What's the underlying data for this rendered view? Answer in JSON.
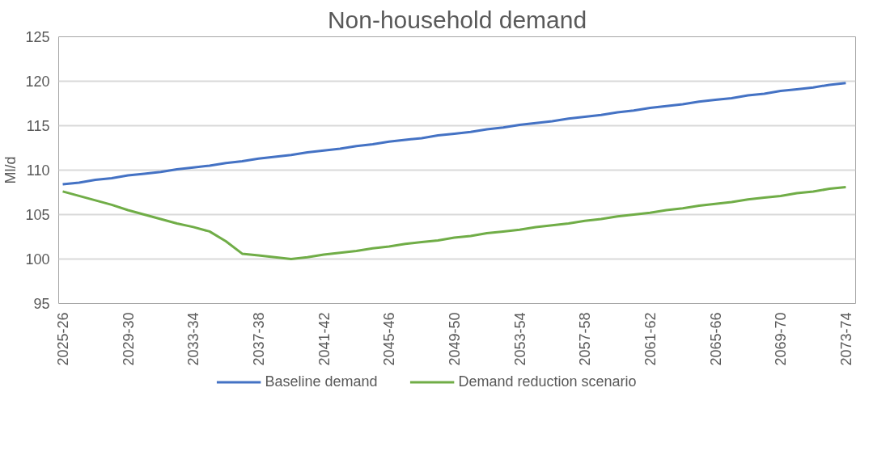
{
  "chart_data": {
    "type": "line",
    "title": "Non-household demand",
    "ylabel": "Ml/d",
    "categories": [
      "2025-26",
      null,
      null,
      null,
      "2029-30",
      null,
      null,
      null,
      "2033-34",
      null,
      null,
      null,
      "2037-38",
      null,
      null,
      null,
      "2041-42",
      null,
      null,
      null,
      "2045-46",
      null,
      null,
      null,
      "2049-50",
      null,
      null,
      null,
      "2053-54",
      null,
      null,
      null,
      "2057-58",
      null,
      null,
      null,
      "2061-62",
      null,
      null,
      null,
      "2065-66",
      null,
      null,
      null,
      "2069-70",
      null,
      null,
      null,
      "2073-74"
    ],
    "series": [
      {
        "name": "Baseline demand",
        "color": "#4472c4",
        "values": [
          108.4,
          108.6,
          108.9,
          109.1,
          109.4,
          109.6,
          109.8,
          110.1,
          110.3,
          110.5,
          110.8,
          111.0,
          111.3,
          111.5,
          111.7,
          112.0,
          112.2,
          112.4,
          112.7,
          112.9,
          113.2,
          113.4,
          113.6,
          113.9,
          114.1,
          114.3,
          114.6,
          114.8,
          115.1,
          115.3,
          115.5,
          115.8,
          116.0,
          116.2,
          116.5,
          116.7,
          117.0,
          117.2,
          117.4,
          117.7,
          117.9,
          118.1,
          118.4,
          118.6,
          118.9,
          119.1,
          119.3,
          119.6,
          119.8
        ]
      },
      {
        "name": "Demand reduction scenario",
        "color": "#70ad47",
        "values": [
          107.6,
          107.1,
          106.6,
          106.1,
          105.5,
          105.0,
          104.5,
          104.0,
          103.6,
          103.1,
          102.0,
          100.6,
          100.4,
          100.2,
          100.0,
          100.2,
          100.5,
          100.7,
          100.9,
          101.2,
          101.4,
          101.7,
          101.9,
          102.1,
          102.4,
          102.6,
          102.9,
          103.1,
          103.3,
          103.6,
          103.8,
          104.0,
          104.3,
          104.5,
          104.8,
          105.0,
          105.2,
          105.5,
          105.7,
          106.0,
          106.2,
          106.4,
          106.7,
          106.9,
          107.1,
          107.4,
          107.6,
          107.9,
          108.1
        ]
      }
    ],
    "ylim": [
      95,
      125
    ],
    "yticks": [
      95,
      100,
      105,
      110,
      115,
      120,
      125
    ],
    "grid": "y",
    "legend": "bottom",
    "marker": "none",
    "line_style": "solid"
  }
}
